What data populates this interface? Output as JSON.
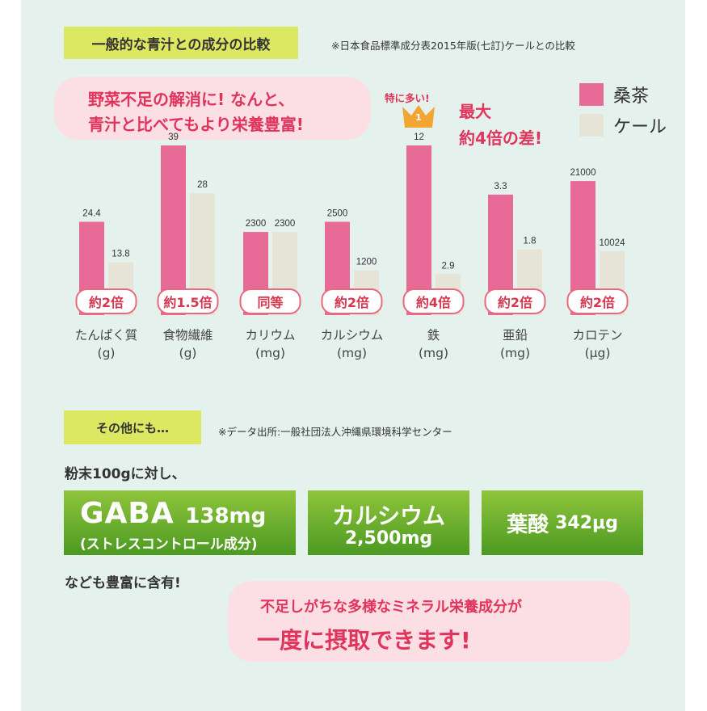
{
  "section1": {
    "tag": "一般的な青汁との成分の比較",
    "note": "※日本食品標準成分表2015年版(七訂)ケールとの比較"
  },
  "speech": {
    "line1": "野菜不足の解消に! なんと、",
    "line2": "青汁と比べてもより栄養豊富!"
  },
  "highlight": {
    "special": "特に多い!",
    "rank": "1",
    "max_line1": "最大",
    "max_line2": "約4倍の差!"
  },
  "colors": {
    "mulberry": "#e76b96",
    "kale": "#e6e4d6",
    "accent": "#e1345c",
    "tag_bg": "#dce861",
    "bubble_bg": "#fbdfe4",
    "panel_bg": "#e5f1ec",
    "crown": "#f2a532",
    "green_top": "#8fc43c",
    "green_bottom": "#4c9a22"
  },
  "chart_data": {
    "type": "bar",
    "categories": [
      "たんぱく質",
      "食物繊維",
      "カリウム",
      "カルシウム",
      "鉄",
      "亜鉛",
      "カロテン"
    ],
    "units": [
      "(g)",
      "(g)",
      "(mg)",
      "(mg)",
      "(mg)",
      "(mg)",
      "(μg)"
    ],
    "series": [
      {
        "name": "桑茶",
        "values": [
          24.4,
          39,
          2300,
          2500,
          12,
          3.3,
          21000
        ],
        "labels": [
          "24.4",
          "39",
          "2300",
          "2500",
          "12",
          "3.3",
          "21000"
        ]
      },
      {
        "name": "ケール",
        "values": [
          13.8,
          28,
          2300,
          1200,
          2.9,
          1.8,
          10024
        ],
        "labels": [
          "13.8",
          "28",
          "2300",
          "1200",
          "2.9",
          "1.8",
          "10024"
        ]
      }
    ],
    "ratio_labels": [
      "約2倍",
      "約1.5倍",
      "同等",
      "約2倍",
      "約4倍",
      "約2倍",
      "約2倍"
    ],
    "note": "each category is drawn on its own independent scale"
  },
  "section2": {
    "tag": "その他にも…",
    "note": "※データ出所:一般社団法人沖縄県環境科学センター"
  },
  "intro": "粉末100gに対し、",
  "nutrients": {
    "gaba_name": "GABA",
    "gaba_amount": "138mg",
    "gaba_sub": "(ストレスコントロール成分)",
    "calcium_name": "カルシウム",
    "calcium_amount": "2,500mg",
    "folic_name": "葉酸",
    "folic_amount": "342μg"
  },
  "outro": "なども豊富に含有!",
  "bottom": {
    "line1": "不足しがちな多様なミネラル栄養成分が",
    "line2": "一度に摂取できます!"
  }
}
